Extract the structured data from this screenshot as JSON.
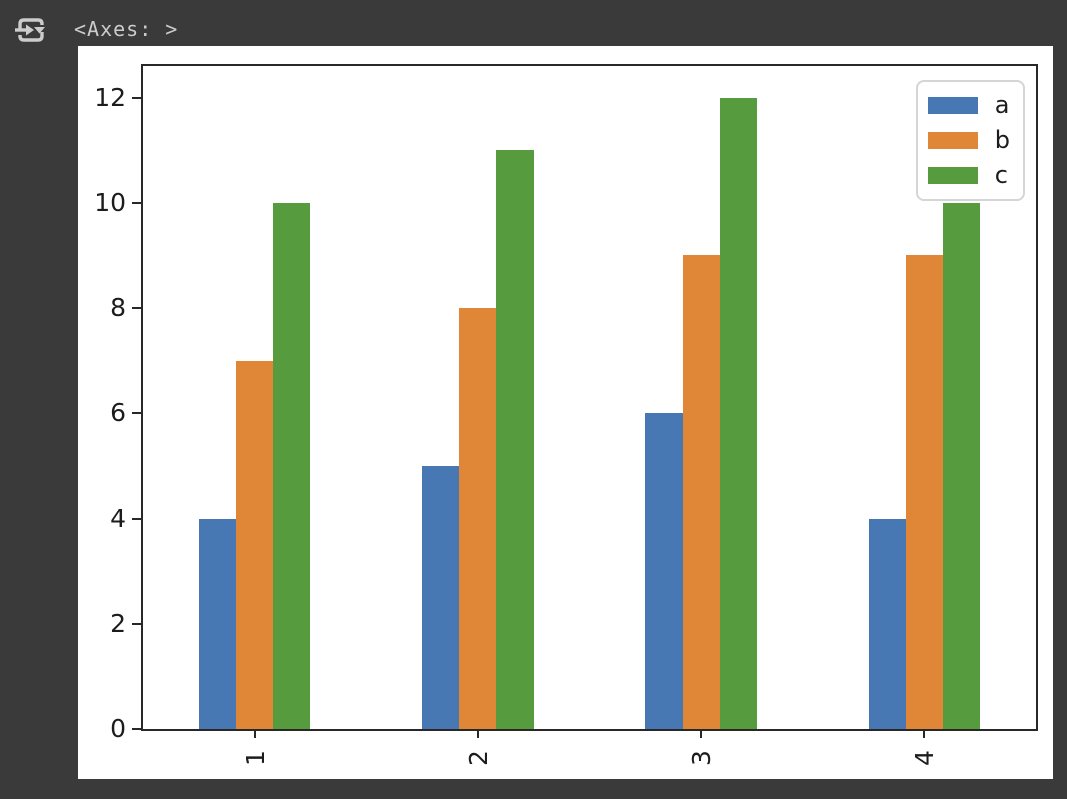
{
  "window": {
    "background": "#3a3a3a"
  },
  "output_header": {
    "repr_text": "<Axes: >",
    "icon": "cell-output-menu-icon",
    "icon_color": "#cccccc"
  },
  "chart_data": {
    "type": "bar",
    "title": "",
    "xlabel": "",
    "ylabel": "",
    "categories": [
      "1",
      "2",
      "3",
      "4"
    ],
    "series": [
      {
        "name": "a",
        "color": "#4878b4",
        "values": [
          4,
          5,
          6,
          4
        ]
      },
      {
        "name": "b",
        "color": "#e08637",
        "values": [
          7,
          8,
          9,
          9
        ]
      },
      {
        "name": "c",
        "color": "#569c3f",
        "values": [
          10,
          11,
          12,
          10
        ]
      }
    ],
    "ylim": [
      0,
      12.6
    ],
    "yticks": [
      0,
      2,
      4,
      6,
      8,
      10,
      12
    ],
    "x_tick_rotation": 90,
    "bar_group_total_width": 0.5,
    "grid": false,
    "legend": {
      "position": "upper right",
      "labels": [
        "a",
        "b",
        "c"
      ]
    },
    "figure_bg": "#ffffff",
    "axis_color": "#282828"
  }
}
